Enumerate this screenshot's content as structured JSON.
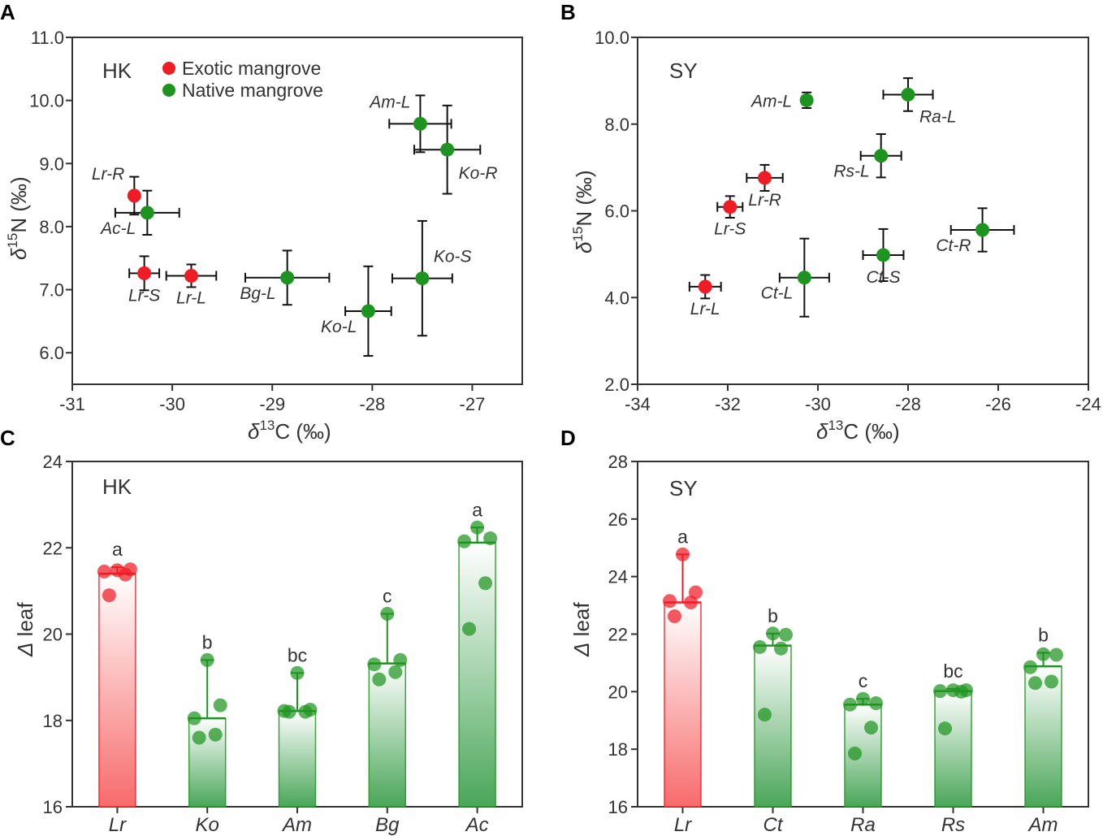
{
  "figure": {
    "panels": {
      "A": "A",
      "B": "B",
      "C": "C",
      "D": "D"
    },
    "sites": {
      "A": "HK",
      "B": "SY",
      "C": "HK",
      "D": "SY"
    },
    "legend": {
      "exotic": "Exotic mangrove",
      "native": "Native mangrove"
    },
    "axis_text": {
      "delta": "δ",
      "c13_sup": "13",
      "n15_sup": "15",
      "c_unit": "C (‰)",
      "n_unit": "N (‰)",
      "Delta": "Δ",
      "leaf": " leaf"
    },
    "colors": {
      "exotic": "#ee1c25",
      "native": "#1e9420",
      "axis": "#333333"
    }
  },
  "chart_data": [
    {
      "panel": "A",
      "type": "scatter",
      "title": "HK",
      "xlabel": "δ13C (‰)",
      "ylabel": "δ15N (‰)",
      "xlim": [
        -31,
        -26.5
      ],
      "ylim": [
        5.5,
        11.0
      ],
      "xticks": [
        -31,
        -30,
        -29,
        -28,
        -27
      ],
      "yticks": [
        6.0,
        7.0,
        8.0,
        9.0,
        10.0,
        11.0
      ],
      "xtick_labels": [
        "-31",
        "-30",
        "-29",
        "-28",
        "-27"
      ],
      "ytick_labels": [
        "6.0",
        "7.0",
        "8.0",
        "9.0",
        "10.0",
        "11.0"
      ],
      "points": [
        {
          "label": "Lr-R",
          "group": "exotic",
          "x": -30.38,
          "y": 8.49,
          "xerr": 0,
          "yerr": 0.3,
          "label_pos": "upper-left"
        },
        {
          "label": "Ac-L",
          "group": "native",
          "x": -30.25,
          "y": 8.22,
          "xerr": 0.32,
          "yerr": 0.35,
          "label_pos": "lower-left"
        },
        {
          "label": "Lr-S",
          "group": "exotic",
          "x": -30.28,
          "y": 7.26,
          "xerr": 0.15,
          "yerr": 0.27,
          "label_pos": "below"
        },
        {
          "label": "Lr-L",
          "group": "exotic",
          "x": -29.81,
          "y": 7.22,
          "xerr": 0.25,
          "yerr": 0.18,
          "label_pos": "below"
        },
        {
          "label": "Bg-L",
          "group": "native",
          "x": -28.85,
          "y": 7.19,
          "xerr": 0.42,
          "yerr": 0.43,
          "label_pos": "lower-left"
        },
        {
          "label": "Ko-L",
          "group": "native",
          "x": -28.04,
          "y": 6.66,
          "xerr": 0.23,
          "yerr": 0.71,
          "label_pos": "lower-left"
        },
        {
          "label": "Ko-S",
          "group": "native",
          "x": -27.5,
          "y": 7.18,
          "xerr": 0.3,
          "yerr": 0.91,
          "label_pos": "upper-right"
        },
        {
          "label": "Am-L",
          "group": "native",
          "x": -27.52,
          "y": 9.63,
          "xerr": 0.31,
          "yerr": 0.45,
          "label_pos": "upper-left"
        },
        {
          "label": "Ko-R",
          "group": "native",
          "x": -27.25,
          "y": 9.22,
          "xerr": 0.33,
          "yerr": 0.7,
          "label_pos": "right"
        }
      ]
    },
    {
      "panel": "B",
      "type": "scatter",
      "title": "SY",
      "xlabel": "δ13C (‰)",
      "ylabel": "δ15N (‰)",
      "xlim": [
        -34,
        -24
      ],
      "ylim": [
        2.0,
        10.0
      ],
      "xticks": [
        -34,
        -32,
        -30,
        -28,
        -26,
        -24
      ],
      "yticks": [
        2.0,
        4.0,
        6.0,
        8.0,
        10.0
      ],
      "xtick_labels": [
        "-34",
        "-32",
        "-30",
        "-28",
        "-26",
        "-24"
      ],
      "ytick_labels": [
        "2.0",
        "4.0",
        "6.0",
        "8.0",
        "10.0"
      ],
      "points": [
        {
          "label": "Am-L",
          "group": "native",
          "x": -30.25,
          "y": 8.55,
          "xerr": 0.1,
          "yerr": 0.18,
          "label_pos": "left"
        },
        {
          "label": "Ra-L",
          "group": "native",
          "x": -28.0,
          "y": 8.68,
          "xerr": 0.55,
          "yerr": 0.38,
          "label_pos": "lower-right"
        },
        {
          "label": "Rs-L",
          "group": "native",
          "x": -28.6,
          "y": 7.27,
          "xerr": 0.45,
          "yerr": 0.5,
          "label_pos": "lower-left"
        },
        {
          "label": "Lr-R",
          "group": "exotic",
          "x": -31.18,
          "y": 6.76,
          "xerr": 0.4,
          "yerr": 0.3,
          "label_pos": "below"
        },
        {
          "label": "Lr-S",
          "group": "exotic",
          "x": -31.95,
          "y": 6.09,
          "xerr": 0.28,
          "yerr": 0.25,
          "label_pos": "below"
        },
        {
          "label": "Ct-R",
          "group": "native",
          "x": -26.35,
          "y": 5.56,
          "xerr": 0.7,
          "yerr": 0.5,
          "label_pos": "lower-left"
        },
        {
          "label": "Ct-S",
          "group": "native",
          "x": -28.55,
          "y": 4.98,
          "xerr": 0.45,
          "yerr": 0.6,
          "label_pos": "below"
        },
        {
          "label": "Ct-L",
          "group": "native",
          "x": -30.3,
          "y": 4.46,
          "xerr": 0.55,
          "yerr": 0.9,
          "label_pos": "lower-left"
        },
        {
          "label": "Lr-L",
          "group": "exotic",
          "x": -32.5,
          "y": 4.25,
          "xerr": 0.35,
          "yerr": 0.27,
          "label_pos": "below"
        }
      ]
    },
    {
      "panel": "C",
      "type": "bar",
      "title": "HK",
      "xlabel": "",
      "ylabel": "Δ leaf",
      "ylim": [
        16,
        24
      ],
      "yticks": [
        16,
        18,
        20,
        22,
        24
      ],
      "ytick_labels": [
        "16",
        "18",
        "20",
        "22",
        "24"
      ],
      "categories": [
        "Lr",
        "Ko",
        "Am",
        "Bg",
        "Ac"
      ],
      "values": [
        21.4,
        18.05,
        18.22,
        19.32,
        22.12
      ],
      "err_high": [
        21.55,
        19.4,
        19.1,
        20.47,
        22.47
      ],
      "letters": [
        "a",
        "b",
        "bc",
        "c",
        "a"
      ],
      "groups": [
        "exotic",
        "native",
        "native",
        "native",
        "native"
      ],
      "points": [
        [
          21.48,
          21.5,
          21.45,
          21.38,
          20.9
        ],
        [
          19.4,
          18.35,
          18.05,
          17.67,
          17.6
        ],
        [
          19.1,
          18.25,
          18.22,
          18.2,
          18.2
        ],
        [
          20.47,
          19.4,
          19.3,
          19.12,
          18.95
        ],
        [
          22.47,
          22.22,
          22.15,
          21.18,
          20.12
        ]
      ]
    },
    {
      "panel": "D",
      "type": "bar",
      "title": "SY",
      "xlabel": "",
      "ylabel": "Δ leaf",
      "ylim": [
        16,
        28
      ],
      "yticks": [
        16,
        18,
        20,
        22,
        24,
        26,
        28
      ],
      "ytick_labels": [
        "16",
        "18",
        "20",
        "22",
        "24",
        "26",
        "28"
      ],
      "categories": [
        "Lr",
        "Ct",
        "Ra",
        "Rs",
        "Am"
      ],
      "values": [
        23.1,
        21.6,
        19.55,
        20.02,
        20.88
      ],
      "err_high": [
        24.77,
        22.02,
        19.75,
        20.1,
        21.35
      ],
      "letters": [
        "a",
        "b",
        "c",
        "bc",
        "b"
      ],
      "groups": [
        "exotic",
        "native",
        "native",
        "native",
        "native"
      ],
      "points": [
        [
          24.77,
          23.45,
          23.15,
          23.1,
          22.62
        ],
        [
          22.02,
          21.98,
          21.55,
          21.5,
          19.2
        ],
        [
          19.75,
          19.6,
          19.55,
          18.75,
          17.85
        ],
        [
          20.05,
          20.05,
          20.02,
          20.0,
          18.72
        ],
        [
          21.3,
          21.28,
          20.85,
          20.35,
          20.3
        ]
      ]
    }
  ]
}
